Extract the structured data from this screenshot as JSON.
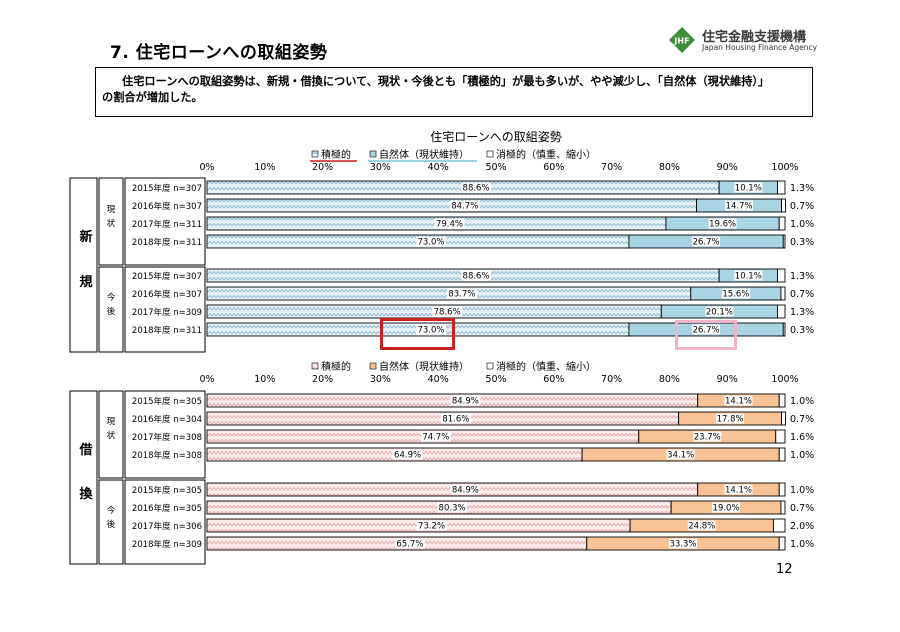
{
  "page": {
    "title": "7. 住宅ローンへの取組姿勢",
    "summary_line1": "住宅ローンへの取組姿勢は、新規・借換について、現状・今後とも「積極的」が最も多いが、やや減少し、「自然体（現状維持）」",
    "summary_line2": "の割合が増加した。",
    "page_number": "12",
    "logo_mark": "JHF",
    "logo_name": "住宅金融支援機構",
    "logo_sub": "Japan Housing Finance Agency"
  },
  "chart_data": [
    {
      "type": "bar",
      "orientation": "horizontal",
      "stacked": "percent",
      "title": "住宅ローンへの取組姿勢",
      "section": "新規",
      "legend": [
        "積極的",
        "自然体（現状維持）",
        "消極的（慎重、縮小）"
      ],
      "legend_placement": "top",
      "colors": [
        "#e6f1f7",
        "#a9d4e4",
        "#ffffff"
      ],
      "pattern_color": "#7fb3cc",
      "xlim": [
        0,
        100
      ],
      "x_ticks": [
        "0%",
        "10%",
        "20%",
        "30%",
        "40%",
        "50%",
        "60%",
        "70%",
        "80%",
        "90%",
        "100%"
      ],
      "groups": [
        {
          "name": "現状",
          "rows": [
            {
              "label": "2015年度  n=307",
              "values": [
                88.6,
                10.1,
                1.3
              ],
              "labels": [
                "88.6%",
                "10.1%",
                "1.3%"
              ]
            },
            {
              "label": "2016年度  n=307",
              "values": [
                84.7,
                14.7,
                0.7
              ],
              "labels": [
                "84.7%",
                "14.7%",
                "0.7%"
              ]
            },
            {
              "label": "2017年度  n=311",
              "values": [
                79.4,
                19.6,
                1.0
              ],
              "labels": [
                "79.4%",
                "19.6%",
                "1.0%"
              ]
            },
            {
              "label": "2018年度  n=311",
              "values": [
                73.0,
                26.7,
                0.3
              ],
              "labels": [
                "73.0%",
                "26.7%",
                "0.3%"
              ]
            }
          ]
        },
        {
          "name": "今後",
          "rows": [
            {
              "label": "2015年度  n=307",
              "values": [
                88.6,
                10.1,
                1.3
              ],
              "labels": [
                "88.6%",
                "10.1%",
                "1.3%"
              ]
            },
            {
              "label": "2016年度  n=307",
              "values": [
                83.7,
                15.6,
                0.7
              ],
              "labels": [
                "83.7%",
                "15.6%",
                "0.7%"
              ]
            },
            {
              "label": "2017年度  n=309",
              "values": [
                78.6,
                20.1,
                1.3
              ],
              "labels": [
                "78.6%",
                "20.1%",
                "1.3%"
              ]
            },
            {
              "label": "2018年度  n=311",
              "values": [
                73.0,
                26.7,
                0.3
              ],
              "labels": [
                "73.0%",
                "26.7%",
                "0.3%"
              ]
            }
          ]
        }
      ],
      "highlights": [
        {
          "group": 1,
          "row": 3,
          "segment": 0,
          "color": "#cc1f1f"
        },
        {
          "group": 1,
          "row": 3,
          "segment": 1,
          "color": "#f2b2c8"
        }
      ]
    },
    {
      "type": "bar",
      "orientation": "horizontal",
      "stacked": "percent",
      "title": "",
      "section": "借換",
      "legend": [
        "積極的",
        "自然体（現状維持）",
        "消極的（慎重、縮小）"
      ],
      "legend_placement": "top",
      "colors": [
        "#fbeaea",
        "#f9c396",
        "#ffffff"
      ],
      "pattern_color": "#e3a1a1",
      "xlim": [
        0,
        100
      ],
      "x_ticks": [
        "0%",
        "10%",
        "20%",
        "30%",
        "40%",
        "50%",
        "60%",
        "70%",
        "80%",
        "90%",
        "100%"
      ],
      "groups": [
        {
          "name": "現状",
          "rows": [
            {
              "label": "2015年度  n=305",
              "values": [
                84.9,
                14.1,
                1.0
              ],
              "labels": [
                "84.9%",
                "14.1%",
                "1.0%"
              ]
            },
            {
              "label": "2016年度  n=304",
              "values": [
                81.6,
                17.8,
                0.7
              ],
              "labels": [
                "81.6%",
                "17.8%",
                "0.7%"
              ]
            },
            {
              "label": "2017年度  n=308",
              "values": [
                74.7,
                23.7,
                1.6
              ],
              "labels": [
                "74.7%",
                "23.7%",
                "1.6%"
              ]
            },
            {
              "label": "2018年度  n=308",
              "values": [
                64.9,
                34.1,
                1.0
              ],
              "labels": [
                "64.9%",
                "34.1%",
                "1.0%"
              ]
            }
          ]
        },
        {
          "name": "今後",
          "rows": [
            {
              "label": "2015年度  n=305",
              "values": [
                84.9,
                14.1,
                1.0
              ],
              "labels": [
                "84.9%",
                "14.1%",
                "1.0%"
              ]
            },
            {
              "label": "2016年度  n=305",
              "values": [
                80.3,
                19.0,
                0.7
              ],
              "labels": [
                "80.3%",
                "19.0%",
                "0.7%"
              ]
            },
            {
              "label": "2017年度  n=306",
              "values": [
                73.2,
                24.8,
                2.0
              ],
              "labels": [
                "73.2%",
                "24.8%",
                "2.0%"
              ]
            },
            {
              "label": "2018年度  n=309",
              "values": [
                65.7,
                33.3,
                1.0
              ],
              "labels": [
                "65.7%",
                "33.3%",
                "1.0%"
              ]
            }
          ]
        }
      ],
      "highlights": []
    }
  ]
}
